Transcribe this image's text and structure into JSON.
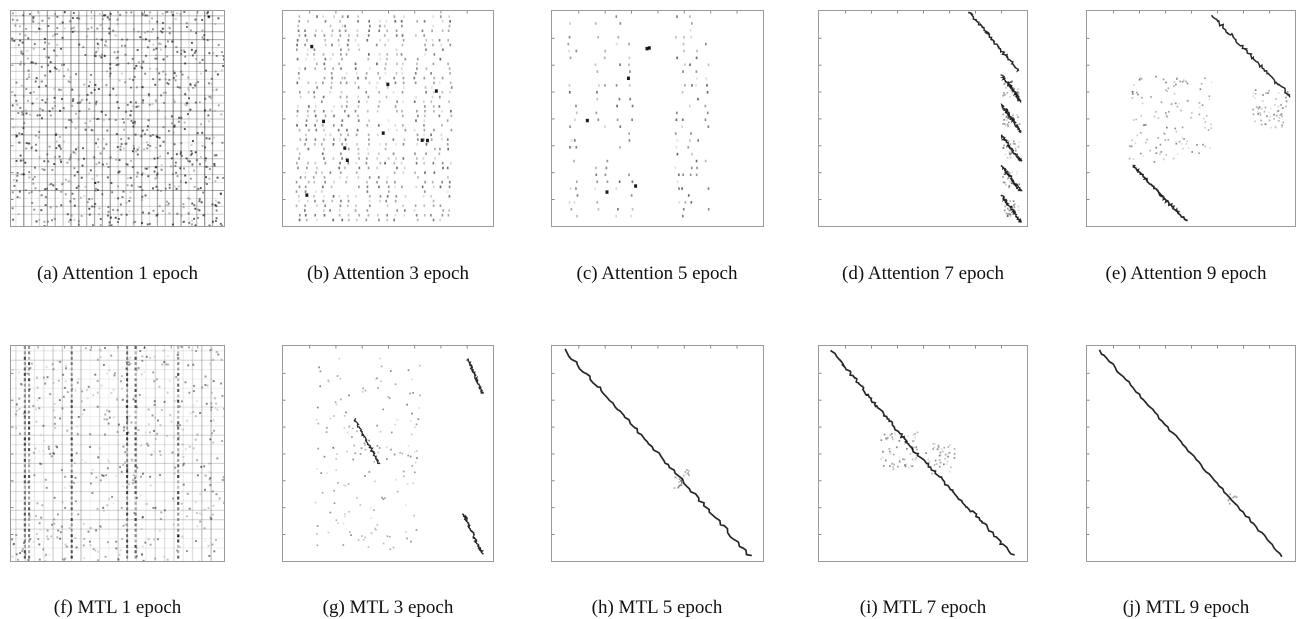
{
  "figure": {
    "panels": [
      {
        "id": "a",
        "caption": "(a) Attention 1 epoch",
        "pattern": "grid-dense"
      },
      {
        "id": "b",
        "caption": "(b) Attention 3 epoch",
        "pattern": "vertical-dots"
      },
      {
        "id": "c",
        "caption": "(c) Attention 5 epoch",
        "pattern": "sparse-vertical"
      },
      {
        "id": "d",
        "caption": "(d) Attention 7 epoch",
        "pattern": "right-zigzag"
      },
      {
        "id": "e",
        "caption": "(e) Attention 9 epoch",
        "pattern": "split-diagonal"
      },
      {
        "id": "f",
        "caption": "(f) MTL 1 epoch",
        "pattern": "grid-medium"
      },
      {
        "id": "g",
        "caption": "(g) MTL 3 epoch",
        "pattern": "fragment-diagonal"
      },
      {
        "id": "h",
        "caption": "(h) MTL 5 epoch",
        "pattern": "diagonal"
      },
      {
        "id": "i",
        "caption": "(i) MTL 7 epoch",
        "pattern": "diagonal-noisy"
      },
      {
        "id": "j",
        "caption": "(j) MTL 9 epoch",
        "pattern": "diagonal-clean"
      }
    ]
  }
}
